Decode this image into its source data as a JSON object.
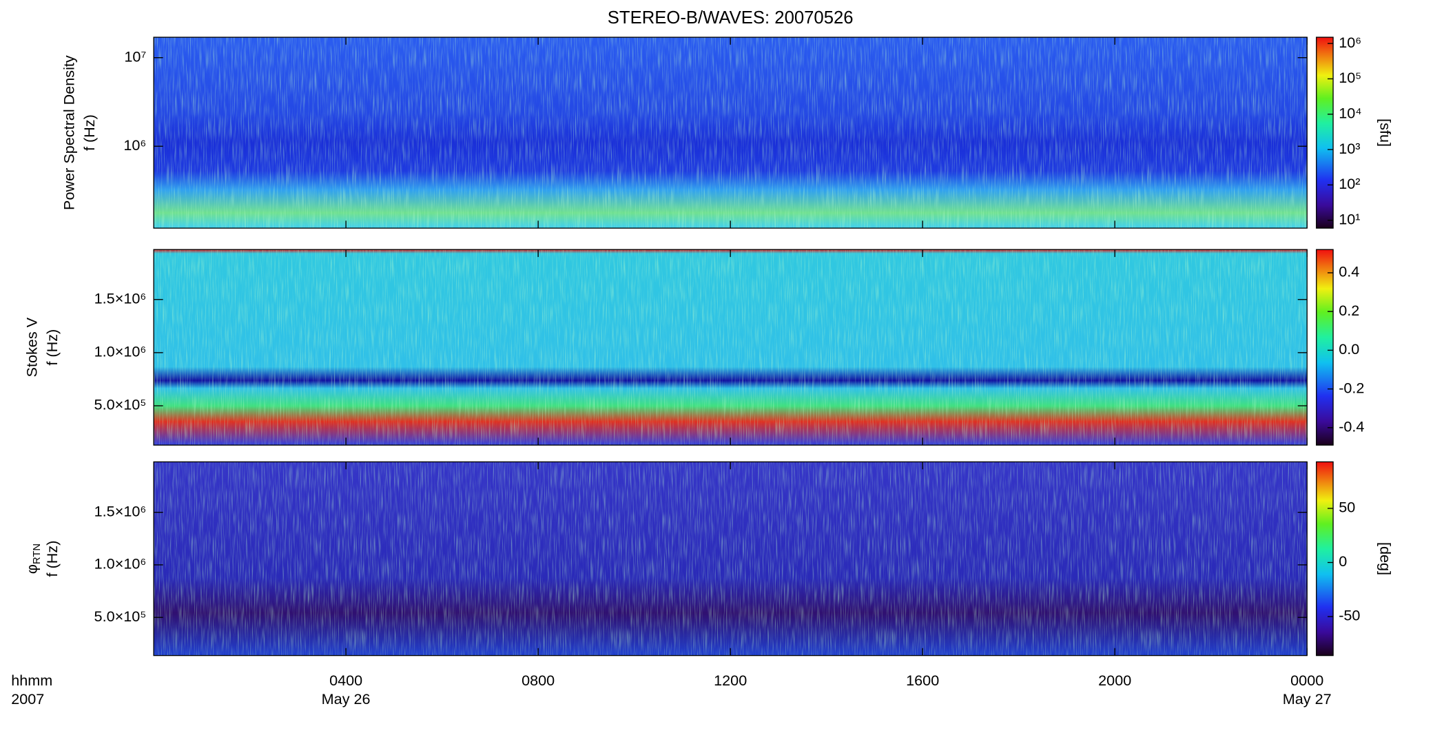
{
  "title": "STEREO-B/WAVES: 20070526",
  "xaxis": {
    "xlim": [
      "2007-05-26T00:00",
      "2007-05-27T00:00"
    ],
    "xticks": [
      {
        "value": "2007-05-26T04:00",
        "label": "0400"
      },
      {
        "value": "2007-05-26T08:00",
        "label": "0800"
      },
      {
        "value": "2007-05-26T12:00",
        "label": "1200"
      },
      {
        "value": "2007-05-26T16:00",
        "label": "1600"
      },
      {
        "value": "2007-05-26T20:00",
        "label": "2000"
      },
      {
        "value": "2007-05-27T00:00",
        "label": "0000"
      }
    ],
    "xlabel": "hhmm",
    "year": "2007",
    "date_labels": [
      {
        "value": "2007-05-26T04:00",
        "label": "May 26"
      },
      {
        "value": "2007-05-27T00:00",
        "label": "May 27"
      }
    ]
  },
  "chart_data": [
    {
      "type": "heatmap",
      "ylabel": "Power Spectral Density",
      "yunit": "f (Hz)",
      "ylog": true,
      "ylim": [
        119000,
        17000000
      ],
      "yticks": [
        {
          "value": 1000000,
          "label": "10⁶"
        },
        {
          "value": 10000000,
          "label": "10⁷"
        }
      ],
      "colorbar": {
        "log": true,
        "lim": [
          6,
          1500000
        ],
        "ticks": [
          {
            "value": 10,
            "label": "10¹"
          },
          {
            "value": 100,
            "label": "10²"
          },
          {
            "value": 1000,
            "label": "10³"
          },
          {
            "value": 10000,
            "label": "10⁴"
          },
          {
            "value": 100000,
            "label": "10⁵"
          },
          {
            "value": 1000000,
            "label": "10⁶"
          }
        ],
        "label": "[sfu]"
      }
    },
    {
      "type": "heatmap",
      "ylabel": "Stokes V",
      "yunit": "f (Hz)",
      "ylog": false,
      "ylim": [
        130000,
        1970000
      ],
      "yticks": [
        {
          "value": 500000,
          "label": "5.0×10⁵"
        },
        {
          "value": 1000000,
          "label": "1.0×10⁶"
        },
        {
          "value": 1500000,
          "label": "1.5×10⁶"
        }
      ],
      "colorbar": {
        "log": false,
        "lim": [
          -0.49,
          0.52
        ],
        "ticks": [
          -0.4,
          -0.2,
          {
            "value": 0,
            "label": "0.0"
          },
          0.2,
          0.4
        ]
      }
    },
    {
      "type": "heatmap",
      "ylabel": "φ",
      "ylabel_sub": "RTN",
      "yunit": "f (Hz)",
      "ylog": false,
      "ylim": [
        137000,
        1980000
      ],
      "yticks": [
        {
          "value": 500000,
          "label": "5.0×10⁵"
        },
        {
          "value": 1000000,
          "label": "1.0×10⁶"
        },
        {
          "value": 1500000,
          "label": "1.5×10⁶"
        }
      ],
      "colorbar": {
        "log": false,
        "lim": [
          -86,
          93
        ],
        "ticks": [
          -50,
          0,
          50
        ],
        "label": "[deg]"
      }
    }
  ]
}
